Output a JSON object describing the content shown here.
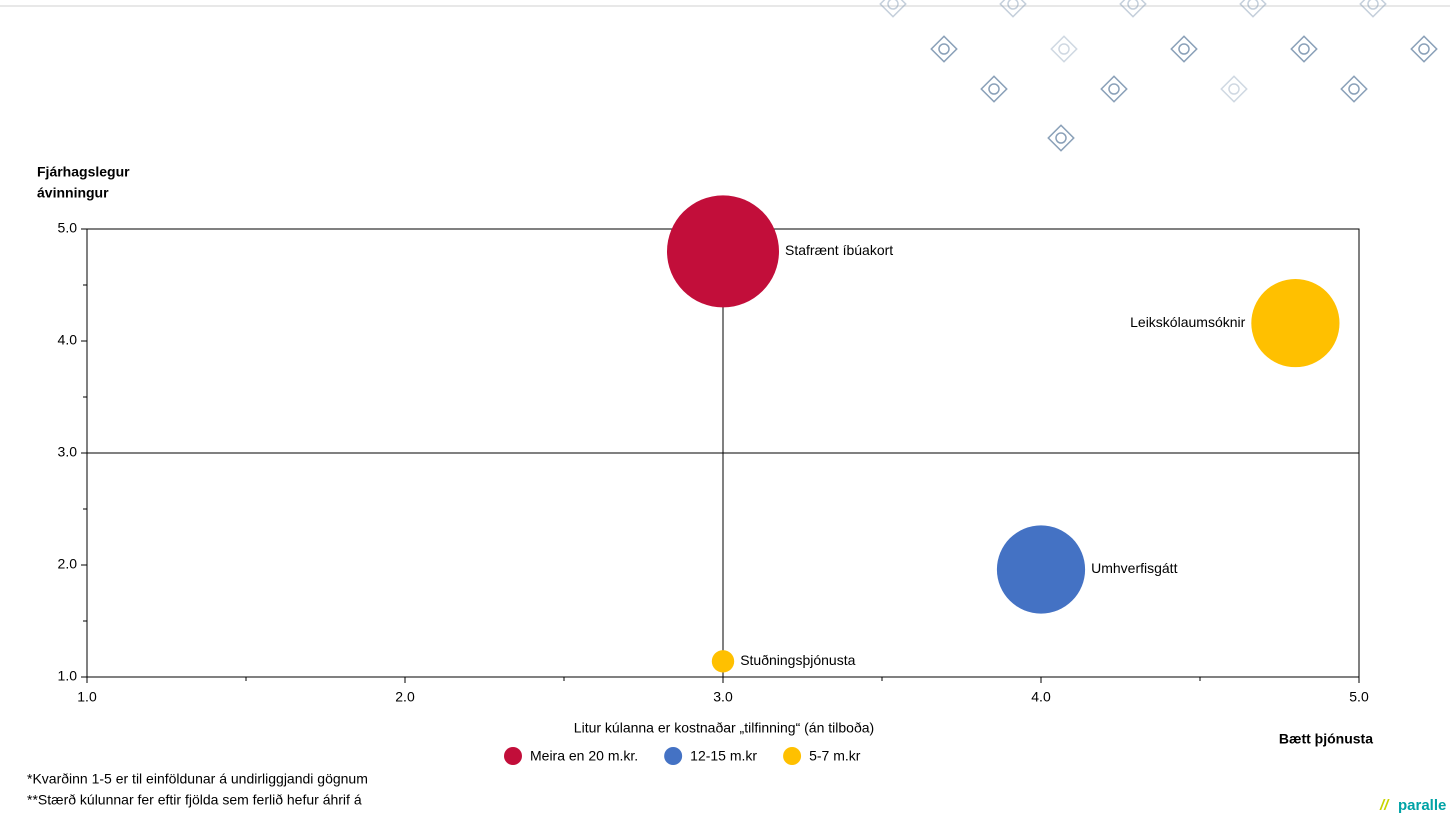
{
  "chart_data": {
    "type": "bubble",
    "y_title": [
      "Fjárhagslegur",
      "ávinningur"
    ],
    "x_title": "Bætt þjónusta",
    "xlim": [
      1,
      5
    ],
    "ylim": [
      1,
      5
    ],
    "xticks": [
      {
        "value": 1,
        "label": "1.0"
      },
      {
        "value": 2,
        "label": "2.0"
      },
      {
        "value": 3,
        "label": "3.0"
      },
      {
        "value": 4,
        "label": "4.0"
      },
      {
        "value": 5,
        "label": "5.0"
      }
    ],
    "yticks": [
      {
        "value": 1,
        "label": "1.0"
      },
      {
        "value": 2,
        "label": "2.0"
      },
      {
        "value": 3,
        "label": "3.0"
      },
      {
        "value": 4,
        "label": "4.0"
      },
      {
        "value": 5,
        "label": "5.0"
      }
    ],
    "xticks_minor": [
      1.5,
      2.5,
      3.5,
      4.5
    ],
    "yticks_minor": [
      1.5,
      2.5,
      3.5,
      4.5
    ],
    "quadrant_lines": {
      "x": 3,
      "y": 3
    },
    "legend_title": "Litur kúlanna er kostnaðar „tilfinning“ (án tilboða)",
    "series": [
      {
        "name": "Meira en 20 m.kr.",
        "color": "#c20e3a",
        "labels": [
          "Stafrænt íbúakort"
        ],
        "x": [
          3.0
        ],
        "values": [
          4.8
        ],
        "sizes": [
          100
        ]
      },
      {
        "name": "12-15 m.kr",
        "color": "#4472c4",
        "labels": [
          "Umhverfisgátt"
        ],
        "x": [
          4.0
        ],
        "values": [
          1.96
        ],
        "sizes": [
          62
        ]
      },
      {
        "name": "5-7 m.kr",
        "color": "#ffc000",
        "labels": [
          "Leikskólaumsóknir",
          "Stuðningsþjónusta"
        ],
        "x": [
          4.8,
          3.0
        ],
        "values": [
          4.16,
          1.14
        ],
        "sizes": [
          62,
          4
        ]
      }
    ],
    "footnotes": [
      "*Kvarðinn 1-5 er til einföldunar á undirliggjandi gögnum",
      "**Stærð kúlunnar fer eftir fjölda sem ferlið hefur áhrif á"
    ],
    "logo": {
      "mark": "//",
      "text": "paralle"
    }
  }
}
